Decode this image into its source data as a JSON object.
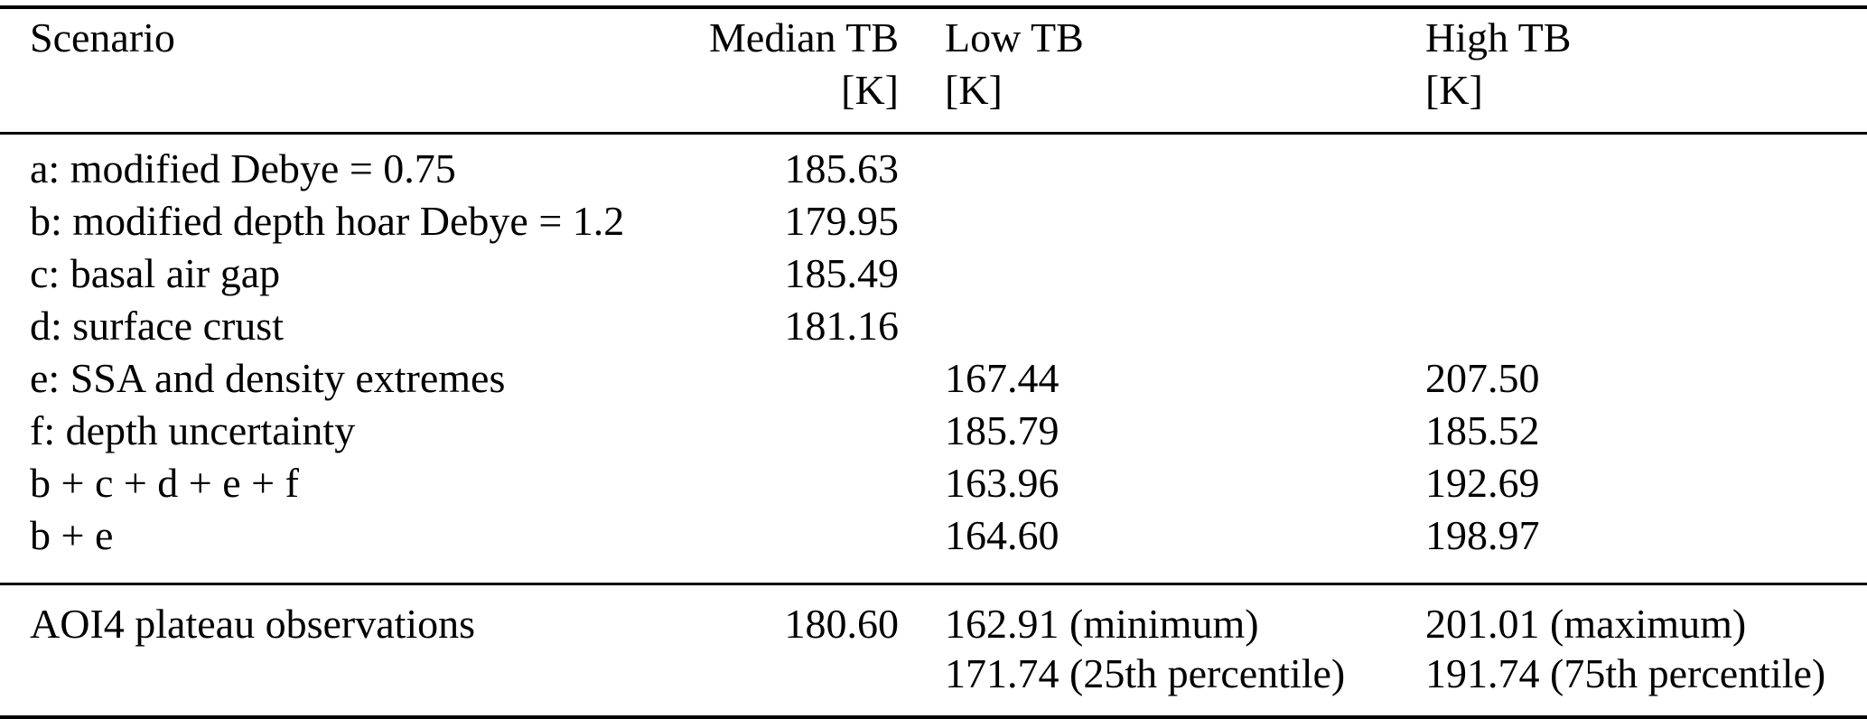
{
  "page": {
    "background_color": "#ffffff",
    "text_color": "#000000",
    "rule_color": "#000000"
  },
  "table": {
    "header": {
      "scenario": "Scenario",
      "median_label": "Median TB",
      "median_unit": "[K]",
      "low_label": "Low TB",
      "low_unit": "[K]",
      "high_label": "High TB",
      "high_unit": "[K]"
    },
    "rows": [
      {
        "scenario": "a: modified Debye = 0.75",
        "median": "185.63",
        "low": "",
        "high": ""
      },
      {
        "scenario": "b: modified depth hoar Debye = 1.2",
        "median": "179.95",
        "low": "",
        "high": ""
      },
      {
        "scenario": "c: basal air gap",
        "median": "185.49",
        "low": "",
        "high": ""
      },
      {
        "scenario": "d: surface crust",
        "median": "181.16",
        "low": "",
        "high": ""
      },
      {
        "scenario": "e: SSA and density extremes",
        "median": "",
        "low": "167.44",
        "high": "207.50"
      },
      {
        "scenario": "f: depth uncertainty",
        "median": "",
        "low": "185.79",
        "high": "185.52"
      },
      {
        "scenario": "b + c + d + e + f",
        "median": "",
        "low": "163.96",
        "high": "192.69"
      },
      {
        "scenario": "b + e",
        "median": "",
        "low": "164.60",
        "high": "198.97"
      }
    ],
    "observations": {
      "scenario": "AOI4 plateau observations",
      "median": "180.60",
      "low_line1": "162.91 (minimum)",
      "low_line2": "171.74 (25th percentile)",
      "high_line1": "201.01 (maximum)",
      "high_line2": "191.74 (75th percentile)"
    }
  }
}
